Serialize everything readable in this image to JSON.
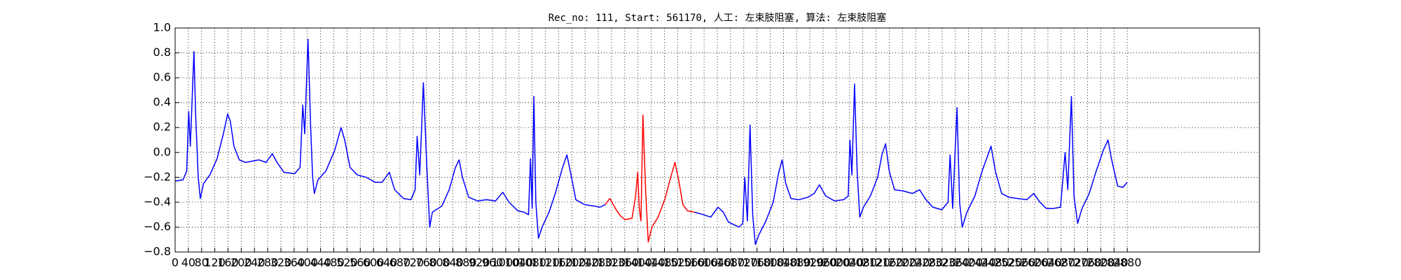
{
  "chart_data": {
    "type": "line",
    "title": "Rec_no: 111, Start: 561170, 人工: 左束肢阻塞, 算法: 左束肢阻塞",
    "xlim": [
      0,
      3280
    ],
    "xticks": [
      0,
      40,
      80,
      120,
      160,
      200,
      240,
      280,
      320,
      360,
      400,
      440,
      480,
      520,
      560,
      600,
      640,
      680,
      720,
      760,
      800,
      840,
      880,
      920,
      960,
      1000,
      1040,
      1080,
      1120,
      1160,
      1200,
      1240,
      1280,
      1320,
      1360,
      1400,
      1440,
      1480,
      1520,
      1560,
      1600,
      1640,
      1680,
      1720,
      1760,
      1800,
      1840,
      1880,
      1920,
      1960,
      2000,
      2040,
      2080,
      2120,
      2160,
      2200,
      2240,
      2280,
      2320,
      2360,
      2400,
      2440,
      2480,
      2520,
      2560,
      2600,
      2640,
      2680,
      2720,
      2760,
      2800,
      2840,
      2880
    ],
    "ylim": [
      -0.8,
      1.0
    ],
    "yticks": [
      {
        "value": -0.8,
        "label": "−0.8"
      },
      {
        "value": -0.6,
        "label": "−0.6"
      },
      {
        "value": -0.4,
        "label": "−0.4"
      },
      {
        "value": -0.2,
        "label": "−0.2"
      },
      {
        "value": 0,
        "label": "0.0"
      },
      0.2,
      0.4,
      0.6,
      0.8,
      {
        "value": 1,
        "label": "1.0"
      }
    ],
    "grid": true,
    "series": [
      {
        "color": "#0000ff",
        "x": [
          0,
          24,
          35,
          41,
          46,
          57,
          62,
          70,
          76,
          86,
          105,
          127,
          146,
          159,
          167,
          178,
          194,
          213,
          254,
          275,
          294,
          308,
          329,
          362,
          378,
          386,
          392,
          402,
          410,
          416,
          421,
          432,
          456,
          483,
          502,
          513,
          529,
          551,
          578,
          605,
          626,
          648,
          664,
          691,
          713,
          726,
          732,
          740,
          751,
          761,
          770,
          778,
          807,
          829,
          848,
          859,
          869,
          888,
          915,
          942,
          969,
          991,
          1010,
          1037,
          1056,
          1069,
          1075,
          1080,
          1085,
          1091,
          1099,
          1110,
          1131,
          1150,
          1172,
          1185,
          1199,
          1212,
          1239,
          1266,
          1285,
          1301,
          1400,
          1571,
          1598,
          1620,
          1642,
          1658,
          1674,
          1690,
          1706,
          1717,
          1723,
          1731,
          1739,
          1747,
          1755,
          1766,
          1787,
          1809,
          1825,
          1836,
          1847,
          1863,
          1887,
          1914,
          1933,
          1949,
          1968,
          1995,
          2022,
          2036,
          2041,
          2047,
          2055,
          2063,
          2071,
          2082,
          2103,
          2125,
          2138,
          2149,
          2160,
          2176,
          2203,
          2230,
          2252,
          2271,
          2292,
          2319,
          2338,
          2344,
          2352,
          2365,
          2373,
          2381,
          2395,
          2419,
          2441,
          2468,
          2481,
          2500,
          2522,
          2549,
          2576,
          2597,
          2616,
          2635,
          2657,
          2678,
          2692,
          2700,
          2711,
          2719,
          2730,
          2743,
          2765,
          2786,
          2808,
          2822,
          2832,
          2851,
          2867,
          2880
        ],
        "values": [
          -0.23,
          -0.22,
          -0.15,
          0.33,
          0.05,
          0.81,
          0.3,
          -0.2,
          -0.37,
          -0.25,
          -0.18,
          -0.05,
          0.15,
          0.31,
          0.25,
          0.05,
          -0.06,
          -0.08,
          -0.06,
          -0.08,
          -0.01,
          -0.08,
          -0.16,
          -0.17,
          -0.12,
          0.38,
          0.15,
          0.91,
          0.2,
          -0.2,
          -0.33,
          -0.22,
          -0.15,
          0.02,
          0.2,
          0.1,
          -0.12,
          -0.18,
          -0.2,
          -0.24,
          -0.24,
          -0.16,
          -0.3,
          -0.37,
          -0.38,
          -0.3,
          0.13,
          -0.18,
          0.56,
          -0.1,
          -0.6,
          -0.48,
          -0.43,
          -0.3,
          -0.12,
          -0.06,
          -0.2,
          -0.36,
          -0.39,
          -0.38,
          -0.39,
          -0.32,
          -0.4,
          -0.47,
          -0.48,
          -0.5,
          -0.05,
          -0.45,
          0.45,
          -0.4,
          -0.69,
          -0.6,
          -0.48,
          -0.33,
          -0.12,
          -0.02,
          -0.2,
          -0.38,
          -0.42,
          -0.43,
          -0.44,
          -0.42,
          null,
          -0.48,
          -0.5,
          -0.52,
          -0.44,
          -0.48,
          -0.56,
          -0.58,
          -0.6,
          -0.57,
          -0.2,
          -0.55,
          0.22,
          -0.5,
          -0.74,
          -0.66,
          -0.55,
          -0.4,
          -0.17,
          -0.06,
          -0.25,
          -0.37,
          -0.38,
          -0.36,
          -0.33,
          -0.26,
          -0.35,
          -0.39,
          -0.38,
          -0.35,
          0.1,
          -0.18,
          0.55,
          -0.15,
          -0.52,
          -0.44,
          -0.35,
          -0.2,
          -0.02,
          0.07,
          -0.15,
          -0.3,
          -0.31,
          -0.33,
          -0.3,
          -0.38,
          -0.44,
          -0.46,
          -0.4,
          -0.02,
          -0.45,
          0.36,
          -0.4,
          -0.6,
          -0.48,
          -0.35,
          -0.15,
          0.05,
          -0.15,
          -0.33,
          -0.36,
          -0.37,
          -0.38,
          -0.33,
          -0.4,
          -0.45,
          -0.45,
          -0.44,
          0.0,
          -0.3,
          0.45,
          -0.35,
          -0.57,
          -0.45,
          -0.33,
          -0.15,
          0.02,
          0.1,
          -0.05,
          -0.27,
          -0.28,
          -0.24
        ]
      },
      {
        "color": "#ff0000",
        "x": [
          1301,
          1315,
          1334,
          1347,
          1361,
          1382,
          1393,
          1399,
          1404,
          1409,
          1415,
          1423,
          1431,
          1442,
          1461,
          1482,
          1501,
          1512,
          1523,
          1536,
          1550,
          1571
        ],
        "values": [
          -0.42,
          -0.37,
          -0.46,
          -0.51,
          -0.54,
          -0.53,
          -0.35,
          -0.16,
          -0.45,
          -0.55,
          0.3,
          -0.3,
          -0.72,
          -0.6,
          -0.52,
          -0.37,
          -0.18,
          -0.08,
          -0.22,
          -0.42,
          -0.47,
          -0.48
        ]
      }
    ]
  }
}
